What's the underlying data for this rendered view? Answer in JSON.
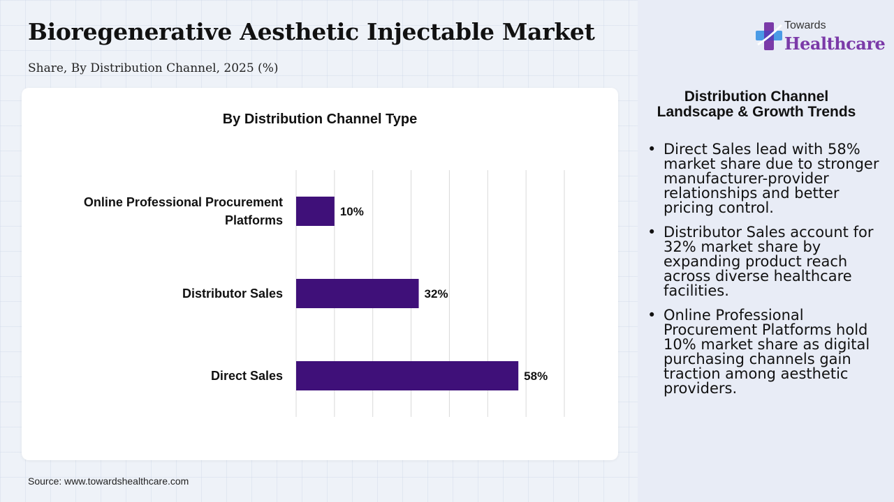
{
  "header": {
    "title": "Bioregenerative Aesthetic Injectable Market",
    "subtitle": "Share, By Distribution Channel, 2025 (%)"
  },
  "chart_data": {
    "type": "bar",
    "orientation": "horizontal",
    "title": "By Distribution Channel Type",
    "categories": [
      "Online Professional Procurement Platforms",
      "Distributor Sales",
      "Direct Sales"
    ],
    "values": [
      10,
      32,
      58
    ],
    "value_labels": [
      "10%",
      "32%",
      "58%"
    ],
    "xlim": [
      0,
      70
    ],
    "grid": true,
    "bar_color": "#3f1079"
  },
  "source": "Source: www.towardshealthcare.com",
  "logo": {
    "line1": "Towards",
    "line2": "Healthcare"
  },
  "panel": {
    "heading": "Distribution Channel Landscape & Growth Trends",
    "bullets": [
      "Direct Sales lead with 58% market share due to stronger manufacturer-provider relationships and better pricing control.",
      "Distributor Sales account for 32% market share by expanding product reach across diverse healthcare facilities.",
      "Online Professional Procurement Platforms hold 10% market share as digital purchasing channels gain traction among aesthetic providers."
    ]
  },
  "colors": {
    "accent": "#3f1079",
    "brand": "#7b3aa8"
  }
}
